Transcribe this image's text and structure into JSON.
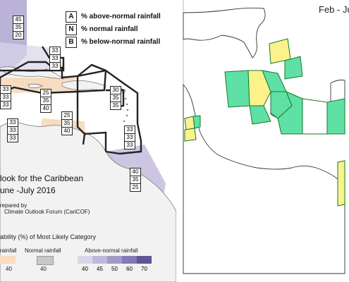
{
  "left_map": {
    "legend_key": [
      {
        "letter": "A",
        "text": "% above-normal rainfall"
      },
      {
        "letter": "N",
        "text": "% normal rainfall"
      },
      {
        "letter": "B",
        "text": "% below-normal rainfall"
      }
    ],
    "regions": [
      {
        "values": [
          "45",
          "35",
          "20"
        ],
        "category": "above",
        "prob": 45
      },
      {
        "values": [
          "33",
          "33",
          "33"
        ],
        "category": "none"
      },
      {
        "values": [
          "33",
          "33",
          "33"
        ],
        "category": "none"
      },
      {
        "values": [
          "33",
          "33",
          "33"
        ],
        "category": "none"
      },
      {
        "values": [
          "25",
          "35",
          "40"
        ],
        "category": "below",
        "prob": 40
      },
      {
        "values": [
          "30",
          "35",
          "35"
        ],
        "category": "none"
      },
      {
        "values": [
          "25",
          "35",
          "40"
        ],
        "category": "below",
        "prob": 40
      },
      {
        "values": [
          "33",
          "33",
          "33"
        ],
        "category": "none"
      },
      {
        "values": [
          "40",
          "35",
          "25"
        ],
        "category": "above",
        "prob": 40
      }
    ],
    "title_line1": "look for the Caribbean",
    "title_line2": "une -July 2016",
    "prepared_by": "repared by",
    "forum": "Climate Outlook Forum (CariCOF)",
    "prob_heading": "ability (%) of Most Likely Category",
    "scale": {
      "below_label": "rainfall",
      "normal_label": "Normal rainfall",
      "above_label": "Above-normal rainfall",
      "below_ticks": [
        "40"
      ],
      "normal_ticks": [
        "40"
      ],
      "above_ticks": [
        "40",
        "45",
        "50",
        "60",
        "70"
      ],
      "below_color": "#f7dcbf",
      "normal_color": "#c8c8c8",
      "above_colors": [
        "#dad6ea",
        "#c0b8dc",
        "#a399c9",
        "#8479b4",
        "#5e5496"
      ]
    }
  },
  "right_map": {
    "period_label": "Feb - Ju",
    "fill_colors": {
      "green": "#5fe0a5",
      "yellow": "#fbf28c",
      "white": "#ffffff"
    },
    "border_color": "#157a28"
  }
}
